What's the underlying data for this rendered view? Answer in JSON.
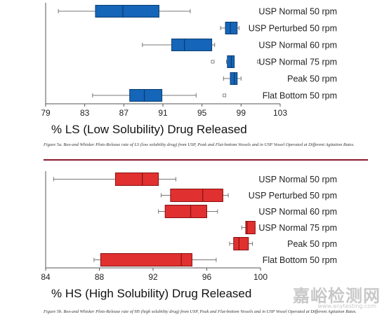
{
  "chart_data": [
    {
      "type": "box",
      "xlabel": "% LS (Low Solubility) Drug Released",
      "xlim": [
        79,
        103
      ],
      "xticks": [
        79,
        83,
        87,
        91,
        95,
        99,
        103
      ],
      "color": "#1565b8",
      "edge_color": "#0b3d70",
      "boxes": [
        {
          "label": "USP Normal 50 rpm",
          "whisker_low": 80.3,
          "q1": 84.1,
          "median": 86.9,
          "q3": 90.6,
          "whisker_high": 93.8,
          "outliers": []
        },
        {
          "label": "USP Perturbed 50 rpm",
          "whisker_low": 96.9,
          "q1": 97.4,
          "median": 97.9,
          "q3": 98.6,
          "whisker_high": 98.8,
          "outliers": []
        },
        {
          "label": "USP Normal 60 rpm",
          "whisker_low": 88.9,
          "q1": 91.9,
          "median": 93.2,
          "q3": 96.0,
          "whisker_high": 96.3,
          "outliers": []
        },
        {
          "label": "USP Normal 75 rpm",
          "whisker_low": 97.5,
          "q1": 97.6,
          "median": 98.0,
          "q3": 98.3,
          "whisker_high": 98.3,
          "outliers": [
            96.1,
            100.8
          ]
        },
        {
          "label": "Peak 50 rpm",
          "whisker_low": 97.2,
          "q1": 97.9,
          "median": 98.3,
          "q3": 98.6,
          "whisker_high": 99.0,
          "outliers": []
        },
        {
          "label": "Flat Bottom 50 rpm",
          "whisker_low": 83.8,
          "q1": 87.6,
          "median": 89.1,
          "q3": 90.9,
          "whisker_high": 94.4,
          "outliers": [
            97.3
          ]
        }
      ]
    },
    {
      "type": "box",
      "xlabel": "% HS (High Solubility) Drug Released",
      "xlim": [
        84,
        100
      ],
      "xticks": [
        84,
        88,
        92,
        96,
        100
      ],
      "color": "#e03030",
      "edge_color": "#8a1010",
      "boxes": [
        {
          "label": "USP Normal 50 rpm",
          "whisker_low": 84.6,
          "q1": 89.2,
          "median": 91.2,
          "q3": 92.4,
          "whisker_high": 93.7,
          "outliers": []
        },
        {
          "label": "USP Perturbed 50 rpm",
          "whisker_low": 92.6,
          "q1": 93.3,
          "median": 95.7,
          "q3": 97.2,
          "whisker_high": 97.6,
          "outliers": []
        },
        {
          "label": "USP Normal 60 rpm",
          "whisker_low": 92.4,
          "q1": 92.9,
          "median": 94.8,
          "q3": 96.0,
          "whisker_high": 96.8,
          "outliers": []
        },
        {
          "label": "USP Normal 75 rpm",
          "whisker_low": 98.6,
          "q1": 98.9,
          "median": 99.0,
          "q3": 99.6,
          "whisker_high": 99.6,
          "outliers": []
        },
        {
          "label": "Peak 50 rpm",
          "whisker_low": 97.7,
          "q1": 98.0,
          "median": 98.4,
          "q3": 99.1,
          "whisker_high": 99.4,
          "outliers": []
        },
        {
          "label": "Flat Bottom 50 rpm",
          "whisker_low": 87.6,
          "q1": 88.1,
          "median": 94.1,
          "q3": 94.9,
          "whisker_high": 96.7,
          "outliers": []
        }
      ]
    }
  ],
  "captions": {
    "a": "Figure 5a. Box-and Whisker Plots-Release rate of LS (low solubility drug) from USP, Peak and Flat-bottom Vessels and in USP Vessel Operated at Different Agitation Rates.",
    "b": "Figure 5b. Box-and Whisker Plots-Release rate of HS (high solubility drug) from USP, Peak and Flat-bottom Vessels and in USP Vessel Operated at Different Agitation Rates."
  },
  "watermark": {
    "text": "嘉峪检测网",
    "sub": "www.anytesting.com"
  }
}
